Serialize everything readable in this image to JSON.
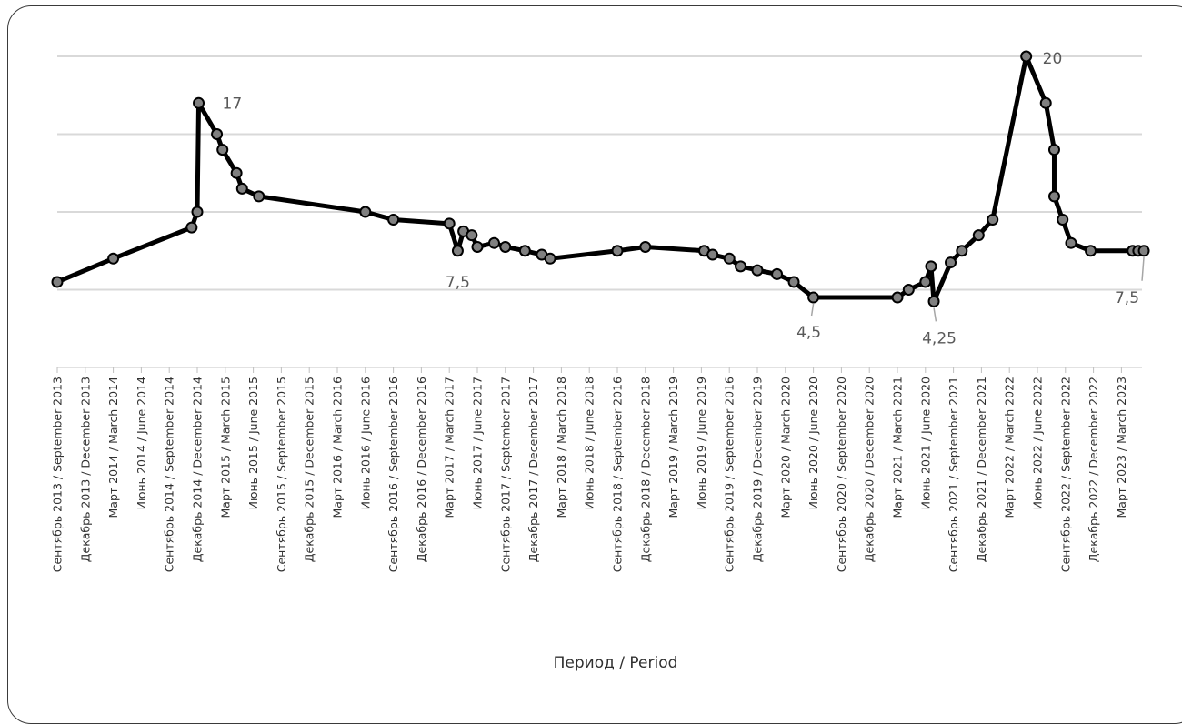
{
  "chart_data": {
    "type": "line",
    "xlabel": "Период / Period",
    "ylabel": "",
    "ylim": [
      0,
      21
    ],
    "grid": true,
    "legend": "none",
    "colors": {
      "line": "#000000",
      "marker_fill": "#808080",
      "gridline": "#d9d9d9",
      "label": "#595959"
    },
    "categories": [
      "Сентябрь 2013 / September 2013",
      "Декабрь 2013 / December 2013",
      "Март 2014 / March 2014",
      "Июнь 2014 / June 2014",
      "Сентябрь 2014 / September 2014",
      "Декабрь 2014 / December 2014",
      "Март 2015 / March 2015",
      "Июнь 2015 / June 2015",
      "Сентябрь 2015 / September 2015",
      "Декабрь 2015 / December 2015",
      "Март 2016 / March 2016",
      "Июнь 2016 / June 2016",
      "Сентябрь 2016 / September 2016",
      "Декабрь 2016 / December 2016",
      "Март 2017 / March 2017",
      "Июнь 2017 / June 2017",
      "Сентябрь 2017 / September 2017",
      "Декабрь 2017 / December 2017",
      "Март 2018 / March 2018",
      "Июнь 2018 / June 2018",
      "Сентябрь 2018 / September 2016",
      "Декабрь 2018 / December 2018",
      "Март 2019 / March 2019",
      "Июнь 2019 / June 2019",
      "Сентябрь 2019 / September 2016",
      "Декабрь 2019 / December 2019",
      "Март 2020 / March 2020",
      "Июнь 2020 / June 2020",
      "Сентябрь 2020 / September 2020",
      "Декабрь 2020 / December 2020",
      "Март 2021 / March 2021",
      "Июнь 2021 / June 2020",
      "Сентябрь 2021 / September 2021",
      "Декабрь 2021 / December 2021",
      "Март 2022 / March 2022",
      "Июнь 2022 / June 2022",
      "Сентябрь 2022 / September 2022",
      "Декабрь 2022 / December 2022",
      "Март 2023 / March 2023"
    ],
    "series": [
      {
        "points": [
          [
            0.0,
            5.5
          ],
          [
            2.0,
            7.0
          ],
          [
            4.8,
            9.0
          ],
          [
            5.0,
            10.0
          ],
          [
            5.05,
            17.0
          ],
          [
            5.7,
            15.0
          ],
          [
            5.9,
            14.0
          ],
          [
            6.4,
            12.5
          ],
          [
            6.6,
            11.5
          ],
          [
            7.2,
            11.0
          ],
          [
            11.0,
            10.0
          ],
          [
            12.0,
            9.5
          ],
          [
            14.0,
            9.25
          ],
          [
            14.3,
            7.5
          ],
          [
            14.5,
            8.75
          ],
          [
            14.8,
            8.5
          ],
          [
            15.0,
            7.75
          ],
          [
            15.6,
            8.0
          ],
          [
            16.0,
            7.75
          ],
          [
            16.7,
            7.5
          ],
          [
            17.3,
            7.25
          ],
          [
            17.6,
            7.0
          ],
          [
            20.0,
            7.5
          ],
          [
            21.0,
            7.75
          ],
          [
            23.1,
            7.5
          ],
          [
            23.4,
            7.25
          ],
          [
            24.0,
            7.0
          ],
          [
            24.4,
            6.5
          ],
          [
            25.0,
            6.25
          ],
          [
            25.7,
            6.0
          ],
          [
            26.3,
            5.5
          ],
          [
            27.0,
            4.5
          ],
          [
            30.0,
            4.5
          ],
          [
            30.4,
            5.0
          ],
          [
            31.0,
            5.5
          ],
          [
            31.2,
            6.5
          ],
          [
            31.3,
            4.25
          ],
          [
            31.9,
            6.75
          ],
          [
            32.3,
            7.5
          ],
          [
            32.9,
            8.5
          ],
          [
            33.4,
            9.5
          ],
          [
            34.6,
            20.0
          ],
          [
            35.3,
            17.0
          ],
          [
            35.6,
            14.0
          ],
          [
            35.6,
            11.0
          ],
          [
            35.9,
            9.5
          ],
          [
            36.2,
            8.0
          ],
          [
            36.9,
            7.5
          ],
          [
            38.4,
            7.5
          ],
          [
            38.6,
            7.5
          ],
          [
            38.8,
            7.5
          ]
        ]
      }
    ],
    "data_labels": [
      {
        "text": "17",
        "point_index": 4
      },
      {
        "text": "7,5",
        "point_index": 13
      },
      {
        "text": "4,5",
        "point_index": 31
      },
      {
        "text": "4,25",
        "point_index": 36
      },
      {
        "text": "20",
        "point_index": 41
      },
      {
        "text": "7,5",
        "point_index": 50
      }
    ]
  }
}
